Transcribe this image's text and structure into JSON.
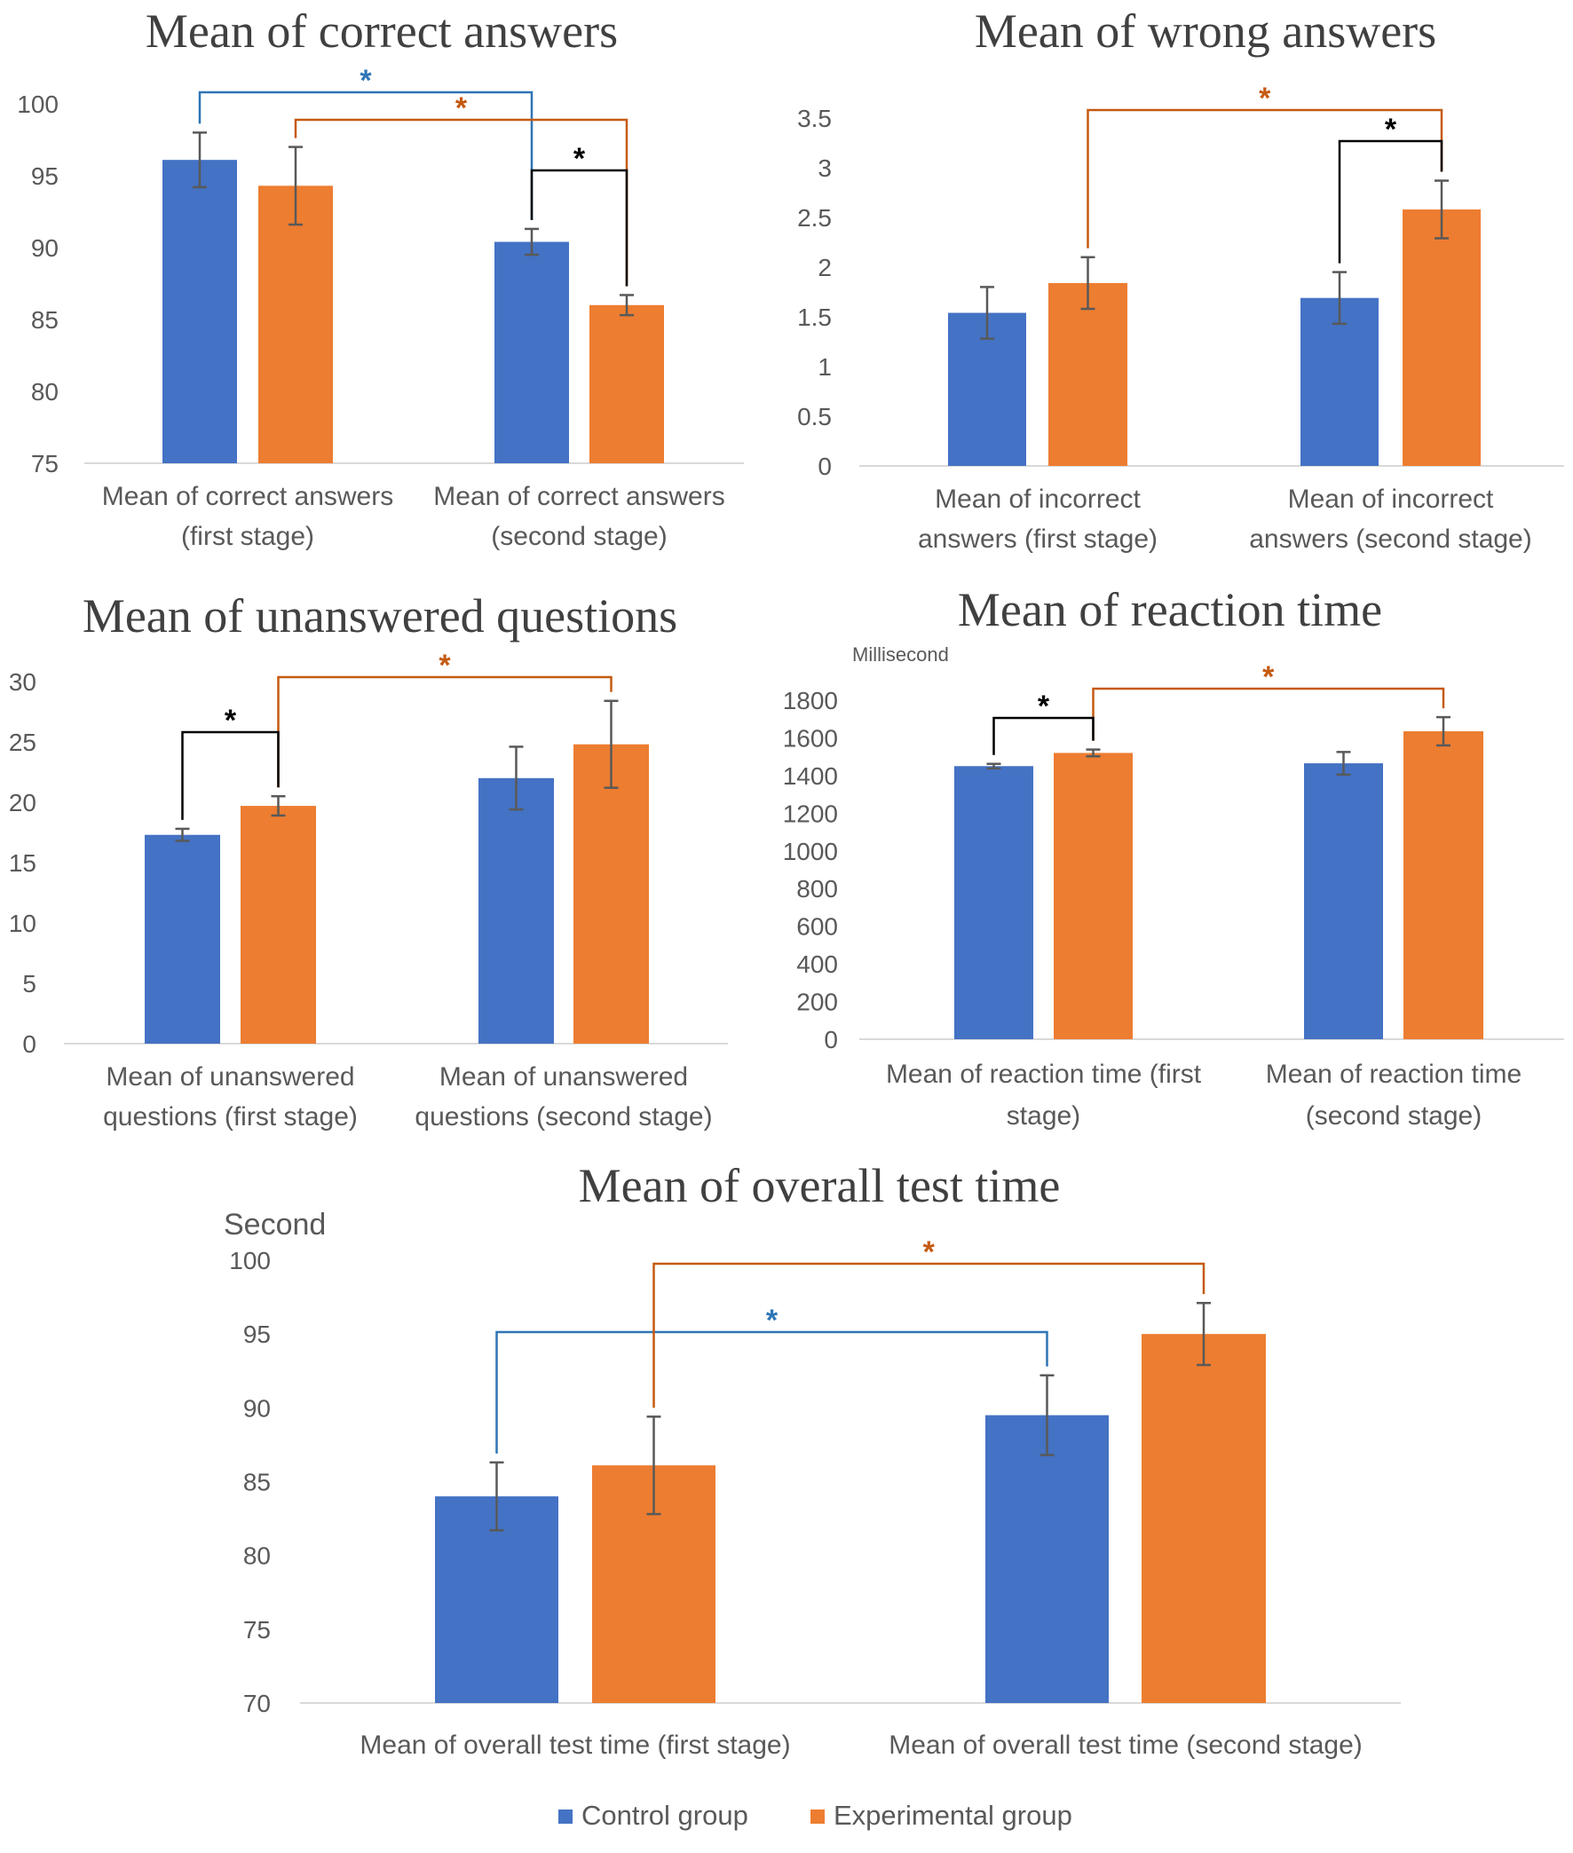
{
  "colors": {
    "control": "#4472C4",
    "experimental": "#ED7D31",
    "axis": "#D9D9D9",
    "text": "#595959",
    "title": "#404040",
    "error_bar": "#595959",
    "sig_black": "#000000",
    "sig_blue": "#2E75B6",
    "sig_orange": "#C55A11"
  },
  "legend": {
    "position": "bottom",
    "items": [
      {
        "label": "Control group",
        "color": "#4472C4"
      },
      {
        "label": "Experimental group",
        "color": "#ED7D31"
      }
    ]
  },
  "significance_symbol": "*",
  "chart_data": [
    {
      "id": "correct",
      "type": "bar",
      "title": "Mean of correct answers",
      "ylabel": "",
      "ylim": [
        75,
        100
      ],
      "yticks": [
        75,
        80,
        85,
        90,
        95,
        100
      ],
      "ytick_labels": [
        "75",
        "80",
        "85",
        "90",
        "95",
        "100"
      ],
      "grid": false,
      "categories": [
        [
          "Mean of correct answers",
          "(first stage)"
        ],
        [
          "Mean of correct answers",
          "(second stage)"
        ]
      ],
      "series": [
        {
          "name": "Control group",
          "values": [
            96.1,
            90.4
          ],
          "errors": [
            1.9,
            0.9
          ]
        },
        {
          "name": "Experimental group",
          "values": [
            94.3,
            86.0
          ],
          "errors": [
            2.7,
            0.7
          ]
        }
      ],
      "significance": [
        {
          "from": [
            0,
            0
          ],
          "to": [
            1,
            0
          ],
          "color": "sig_blue"
        },
        {
          "from": [
            0,
            1
          ],
          "to": [
            1,
            1
          ],
          "color": "sig_orange"
        },
        {
          "from": [
            1,
            0
          ],
          "to": [
            1,
            1
          ],
          "color": "sig_black"
        }
      ]
    },
    {
      "id": "wrong",
      "type": "bar",
      "title": "Mean of wrong answers",
      "ylabel": "",
      "ylim": [
        0,
        3.5
      ],
      "yticks": [
        0,
        0.5,
        1,
        1.5,
        2,
        2.5,
        3,
        3.5
      ],
      "ytick_labels": [
        "0",
        "0.5",
        "1",
        "1.5",
        "2",
        "2.5",
        "3",
        "3.5"
      ],
      "grid": false,
      "categories": [
        [
          "Mean of incorrect",
          "answers (first stage)"
        ],
        [
          "Mean of incorrect",
          "answers (second stage)"
        ]
      ],
      "series": [
        {
          "name": "Control group",
          "values": [
            1.54,
            1.69
          ],
          "errors": [
            0.26,
            0.26
          ]
        },
        {
          "name": "Experimental group",
          "values": [
            1.84,
            2.58
          ],
          "errors": [
            0.26,
            0.29
          ]
        }
      ],
      "significance": [
        {
          "from": [
            0,
            1
          ],
          "to": [
            1,
            1
          ],
          "color": "sig_orange"
        },
        {
          "from": [
            1,
            0
          ],
          "to": [
            1,
            1
          ],
          "color": "sig_black"
        }
      ]
    },
    {
      "id": "unanswered",
      "type": "bar",
      "title": "Mean of unanswered questions",
      "ylabel": "",
      "ylim": [
        0,
        30
      ],
      "yticks": [
        0,
        5,
        10,
        15,
        20,
        25,
        30
      ],
      "ytick_labels": [
        "0",
        "5",
        "10",
        "15",
        "20",
        "25",
        "30"
      ],
      "grid": false,
      "categories": [
        [
          "Mean of unanswered",
          "questions (first stage)"
        ],
        [
          "Mean of unanswered",
          "questions (second stage)"
        ]
      ],
      "series": [
        {
          "name": "Control group",
          "values": [
            17.3,
            22.0
          ],
          "errors": [
            0.5,
            2.6
          ]
        },
        {
          "name": "Experimental group",
          "values": [
            19.7,
            24.8
          ],
          "errors": [
            0.8,
            3.6
          ]
        }
      ],
      "significance": [
        {
          "from": [
            0,
            1
          ],
          "to": [
            1,
            1
          ],
          "color": "sig_orange"
        },
        {
          "from": [
            0,
            0
          ],
          "to": [
            0,
            1
          ],
          "color": "sig_black"
        }
      ]
    },
    {
      "id": "reaction",
      "type": "bar",
      "title": "Mean of reaction time",
      "ylabel": "Millisecond",
      "ylim": [
        0,
        1800
      ],
      "yticks": [
        0,
        200,
        400,
        600,
        800,
        1000,
        1200,
        1400,
        1600,
        1800
      ],
      "ytick_labels": [
        "0",
        "200",
        "400",
        "600",
        "800",
        "1000",
        "1200",
        "1400",
        "1600",
        "1800"
      ],
      "grid": false,
      "categories": [
        [
          "Mean of reaction time (first",
          "stage)"
        ],
        [
          "Mean of reaction time",
          "(second stage)"
        ]
      ],
      "series": [
        {
          "name": "Control group",
          "values": [
            1450,
            1465
          ],
          "errors": [
            12,
            60
          ]
        },
        {
          "name": "Experimental group",
          "values": [
            1520,
            1635
          ],
          "errors": [
            18,
            75
          ]
        }
      ],
      "significance": [
        {
          "from": [
            0,
            1
          ],
          "to": [
            1,
            1
          ],
          "color": "sig_orange"
        },
        {
          "from": [
            0,
            0
          ],
          "to": [
            0,
            1
          ],
          "color": "sig_black"
        }
      ]
    },
    {
      "id": "overall",
      "type": "bar",
      "title": "Mean of overall test time",
      "ylabel": "Second",
      "ylim": [
        70,
        100
      ],
      "yticks": [
        70,
        75,
        80,
        85,
        90,
        95,
        100
      ],
      "ytick_labels": [
        "70",
        "75",
        "80",
        "85",
        "90",
        "95",
        "100"
      ],
      "grid": false,
      "categories": [
        [
          "Mean of overall test time (first stage)"
        ],
        [
          "Mean of overall test time (second stage)"
        ]
      ],
      "series": [
        {
          "name": "Control group",
          "values": [
            84.0,
            89.5
          ],
          "errors": [
            2.3,
            2.7
          ]
        },
        {
          "name": "Experimental group",
          "values": [
            86.1,
            95.0
          ],
          "errors": [
            3.3,
            2.1
          ]
        }
      ],
      "significance": [
        {
          "from": [
            0,
            0
          ],
          "to": [
            1,
            0
          ],
          "color": "sig_blue"
        },
        {
          "from": [
            0,
            1
          ],
          "to": [
            1,
            1
          ],
          "color": "sig_orange"
        }
      ]
    }
  ]
}
